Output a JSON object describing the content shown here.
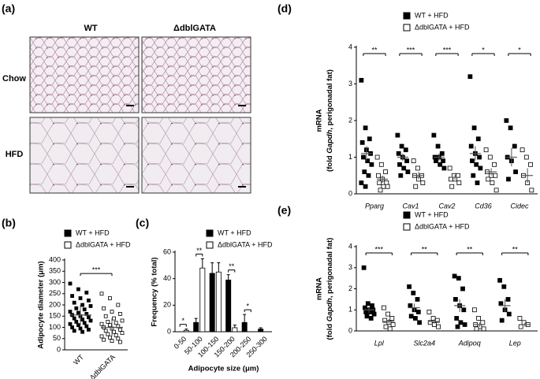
{
  "panel_a": {
    "label": "(a)",
    "columns": [
      "WT",
      "ΔdblGATA"
    ],
    "rows": [
      "Chow",
      "HFD"
    ]
  },
  "chart_data": [
    {
      "type": "strip",
      "label": "(b)",
      "ylabel": "Adipocyte diameter (μm)",
      "categories": [
        "WT",
        "ΔdblGATA"
      ],
      "ylim": [
        0,
        400
      ],
      "yticks": [
        0,
        50,
        100,
        150,
        200,
        250,
        300,
        350,
        400
      ],
      "series": [
        {
          "name": "WT + HFD",
          "color": "#000000",
          "values": [
            [
              295,
              270,
              255,
              240,
              230,
              220,
              210,
              200,
              195,
              185,
              180,
              170,
              165,
              160,
              155,
              150,
              145,
              140,
              135,
              130,
              125,
              120,
              115,
              110,
              105,
              100,
              95,
              90,
              85,
              80
            ],
            []
          ],
          "means": [
            155,
            null
          ],
          "errors": [
            45,
            null
          ]
        },
        {
          "name": "ΔdblGATA + HFD",
          "color": "#ffffff",
          "values": [
            [],
            [
              250,
              230,
              200,
              185,
              170,
              160,
              150,
              140,
              130,
              125,
              120,
              115,
              110,
              105,
              100,
              95,
              90,
              85,
              80,
              75,
              70,
              65,
              60,
              55,
              50,
              45,
              40,
              35
            ]
          ],
          "means": [
            null,
            100
          ],
          "errors": [
            null,
            40
          ]
        }
      ],
      "significance": [
        {
          "text": "***",
          "between": [
            0,
            1
          ],
          "y": 340
        }
      ]
    },
    {
      "type": "bar",
      "label": "(c)",
      "ylabel": "Frequency (% total)",
      "xlabel": "Adipocyte size (μm)",
      "categories": [
        "0-50",
        "50-100",
        "100-150",
        "150-200",
        "200-250",
        "250-300"
      ],
      "ylim": [
        0,
        60
      ],
      "yticks": [
        0,
        20,
        40,
        60
      ],
      "series": [
        {
          "name": "WT + HFD",
          "color": "#000000",
          "values": [
            0,
            7,
            44,
            39,
            7,
            2
          ],
          "errors": [
            0,
            3,
            8,
            4,
            6,
            1
          ]
        },
        {
          "name": "ΔdblGATA + HFD",
          "color": "#ffffff",
          "values": [
            1,
            48,
            45,
            3,
            0,
            0
          ],
          "errors": [
            1,
            7,
            7,
            2,
            0,
            0
          ]
        }
      ],
      "significance": [
        "*",
        "**",
        null,
        "**",
        "*",
        null
      ]
    },
    {
      "type": "strip",
      "label": "(d)",
      "ylabel": [
        "mRNA",
        "(fold ",
        "Gapdh",
        ", perigonadal fat)"
      ],
      "categories": [
        "Pparg",
        "Cav1",
        "Cav2",
        "Cd36",
        "Cidec"
      ],
      "ylim": [
        0,
        4
      ],
      "yticks": [
        0,
        1,
        2,
        3,
        4
      ],
      "series": [
        {
          "name": "WT + HFD",
          "color": "#000000",
          "values": [
            [
              3.1,
              1.8,
              1.5,
              1.4,
              1.2,
              1.1,
              1.0,
              0.9,
              0.8,
              0.6,
              0.5,
              0.3,
              0.2
            ],
            [
              1.6,
              1.3,
              1.2,
              1.1,
              1.0,
              0.9,
              0.8,
              0.7,
              0.6,
              0.5
            ],
            [
              1.6,
              1.3,
              1.1,
              1.0,
              1.0,
              0.9,
              0.9,
              0.8,
              0.7
            ],
            [
              3.2,
              1.8,
              1.5,
              1.3,
              1.1,
              1.0,
              0.9,
              0.8,
              0.7,
              0.5,
              0.3
            ],
            [
              2.0,
              1.8,
              1.3,
              1.0,
              0.9,
              0.6,
              0.4
            ]
          ],
          "means": [
            1.1,
            1.0,
            1.0,
            1.1,
            1.0
          ],
          "errors": [
            0.2,
            0.1,
            0.1,
            0.2,
            0.25
          ]
        },
        {
          "name": "ΔdblGATA + HFD",
          "color": "#ffffff",
          "values": [
            [
              1.0,
              0.8,
              0.6,
              0.5,
              0.4,
              0.3,
              0.3,
              0.2,
              0.2,
              0.1
            ],
            [
              0.9,
              0.7,
              0.5,
              0.5,
              0.4,
              0.3,
              0.2
            ],
            [
              0.7,
              0.5,
              0.5,
              0.4,
              0.4,
              0.3,
              0.2
            ],
            [
              1.2,
              1.0,
              0.8,
              0.6,
              0.5,
              0.5,
              0.4,
              0.3,
              0.1
            ],
            [
              1.2,
              1.0,
              0.8,
              0.5,
              0.3,
              0.1
            ]
          ],
          "means": [
            0.4,
            0.5,
            0.45,
            0.6,
            0.5
          ],
          "errors": [
            0.1,
            0.1,
            0.07,
            0.1,
            0.2
          ]
        }
      ],
      "significance": [
        "**",
        "***",
        "***",
        "*",
        "*"
      ]
    },
    {
      "type": "strip",
      "label": "(e)",
      "ylabel": [
        "mRNA",
        "(fold ",
        "Gapdh",
        ", perigonadal fat)"
      ],
      "categories": [
        "Lpl",
        "Slc2a4",
        "Adipoq",
        "Lep"
      ],
      "ylim": [
        0,
        4
      ],
      "yticks": [
        0,
        1,
        2,
        3,
        4
      ],
      "series": [
        {
          "name": "WT + HFD",
          "color": "#000000",
          "values": [
            [
              3.0,
              1.3,
              1.2,
              1.1,
              1.0,
              1.0,
              0.9,
              0.9,
              0.8,
              0.7,
              0.6
            ],
            [
              2.1,
              1.8,
              1.5,
              1.2,
              1.0,
              0.9,
              0.7,
              0.6,
              0.4
            ],
            [
              2.6,
              2.5,
              2.0,
              1.5,
              1.2,
              1.0,
              0.6,
              0.4,
              0.3,
              0.2
            ],
            [
              2.4,
              2.1,
              1.5,
              1.3,
              1.0,
              0.8,
              0.5
            ]
          ],
          "means": [
            1.0,
            1.1,
            1.2,
            1.2
          ],
          "errors": [
            0.15,
            0.2,
            0.3,
            0.3
          ]
        },
        {
          "name": "ΔdblGATA + HFD",
          "color": "#ffffff",
          "values": [
            [
              1.1,
              0.8,
              0.6,
              0.5,
              0.4,
              0.3,
              0.2,
              0.1
            ],
            [
              0.9,
              0.6,
              0.5,
              0.4,
              0.3,
              0.2
            ],
            [
              1.0,
              0.6,
              0.4,
              0.3,
              0.2,
              0.1,
              0.1
            ],
            [
              0.6,
              0.4,
              0.3,
              0.2
            ]
          ],
          "means": [
            0.45,
            0.45,
            0.3,
            0.3
          ],
          "errors": [
            0.1,
            0.1,
            0.1,
            0.1
          ]
        }
      ],
      "significance": [
        "***",
        "**",
        "**",
        "**"
      ]
    }
  ]
}
